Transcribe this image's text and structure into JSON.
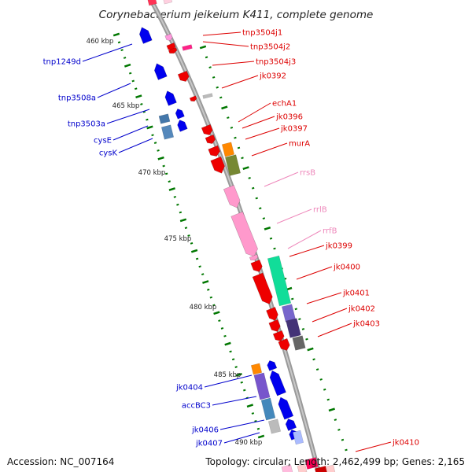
{
  "title": "Corynebacterium jeikeium K411, complete genome",
  "footer": {
    "accession": "Accession: NC_007164",
    "topology": "Topology: circular; Length: 2,462,499 bp; Genes: 2,165"
  },
  "scale_labels": [
    "460 kbp",
    "465 kbp",
    "470 kbp",
    "475 kbp",
    "480 kbp",
    "485 kbp",
    "490 kbp"
  ],
  "colors": {
    "forward_label": "#dd0000",
    "reverse_label": "#0000cc",
    "rna_label": "#ee88bb",
    "backbone": "#999999",
    "ticks": "#007700"
  },
  "labels_right": [
    {
      "text": "tnp3504j1",
      "type": "cds"
    },
    {
      "text": "tnp3504j2",
      "type": "cds"
    },
    {
      "text": "tnp3504j3",
      "type": "cds"
    },
    {
      "text": "jk0392",
      "type": "cds"
    },
    {
      "text": "echA1",
      "type": "cds"
    },
    {
      "text": "jk0396",
      "type": "cds"
    },
    {
      "text": "jk0397",
      "type": "cds"
    },
    {
      "text": "murA",
      "type": "cds"
    },
    {
      "text": "rrsB",
      "type": "rna"
    },
    {
      "text": "rrlB",
      "type": "rna"
    },
    {
      "text": "rrfB",
      "type": "rna"
    },
    {
      "text": "jk0399",
      "type": "cds"
    },
    {
      "text": "jk0400",
      "type": "cds"
    },
    {
      "text": "jk0401",
      "type": "cds"
    },
    {
      "text": "jk0402",
      "type": "cds"
    },
    {
      "text": "jk0403",
      "type": "cds"
    },
    {
      "text": "jk0410",
      "type": "cds"
    }
  ],
  "labels_left": [
    {
      "text": "tnp1249d"
    },
    {
      "text": "tnp3508a"
    },
    {
      "text": "tnp3503a"
    },
    {
      "text": "cysE"
    },
    {
      "text": "cysK"
    },
    {
      "text": "jk0404"
    },
    {
      "text": "accBC3"
    },
    {
      "text": "jk0406"
    },
    {
      "text": "jk0407"
    }
  ]
}
